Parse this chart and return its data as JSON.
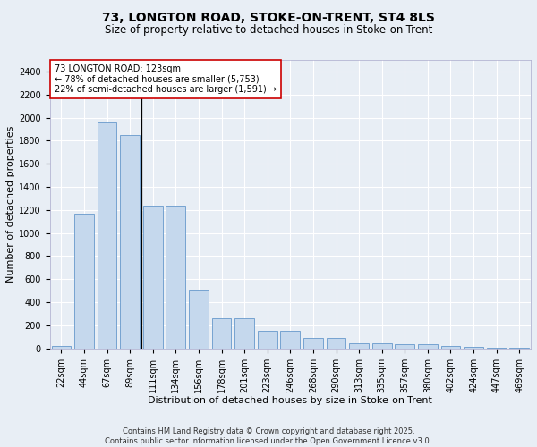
{
  "title_line1": "73, LONGTON ROAD, STOKE-ON-TRENT, ST4 8LS",
  "title_line2": "Size of property relative to detached houses in Stoke-on-Trent",
  "xlabel": "Distribution of detached houses by size in Stoke-on-Trent",
  "ylabel": "Number of detached properties",
  "categories": [
    "22sqm",
    "44sqm",
    "67sqm",
    "89sqm",
    "111sqm",
    "134sqm",
    "156sqm",
    "178sqm",
    "201sqm",
    "223sqm",
    "246sqm",
    "268sqm",
    "290sqm",
    "313sqm",
    "335sqm",
    "357sqm",
    "380sqm",
    "402sqm",
    "424sqm",
    "447sqm",
    "469sqm"
  ],
  "values": [
    25,
    1170,
    1960,
    1850,
    1240,
    1240,
    510,
    265,
    265,
    155,
    155,
    90,
    90,
    45,
    45,
    40,
    40,
    20,
    12,
    8,
    8
  ],
  "bar_color": "#c5d8ed",
  "bar_edge_color": "#6699cc",
  "bg_color": "#e8eef5",
  "plot_bg_color": "#e8eef5",
  "grid_color": "#ffffff",
  "annotation_text": "73 LONGTON ROAD: 123sqm\n← 78% of detached houses are smaller (5,753)\n22% of semi-detached houses are larger (1,591) →",
  "annotation_box_color": "#ffffff",
  "annotation_border_color": "#cc0000",
  "vline_x_index": 4,
  "ylim": [
    0,
    2500
  ],
  "yticks": [
    0,
    200,
    400,
    600,
    800,
    1000,
    1200,
    1400,
    1600,
    1800,
    2000,
    2200,
    2400
  ],
  "footer_line1": "Contains HM Land Registry data © Crown copyright and database right 2025.",
  "footer_line2": "Contains public sector information licensed under the Open Government Licence v3.0.",
  "title_fontsize": 10,
  "subtitle_fontsize": 8.5,
  "axis_label_fontsize": 8,
  "tick_fontsize": 7,
  "annotation_fontsize": 7,
  "footer_fontsize": 6
}
